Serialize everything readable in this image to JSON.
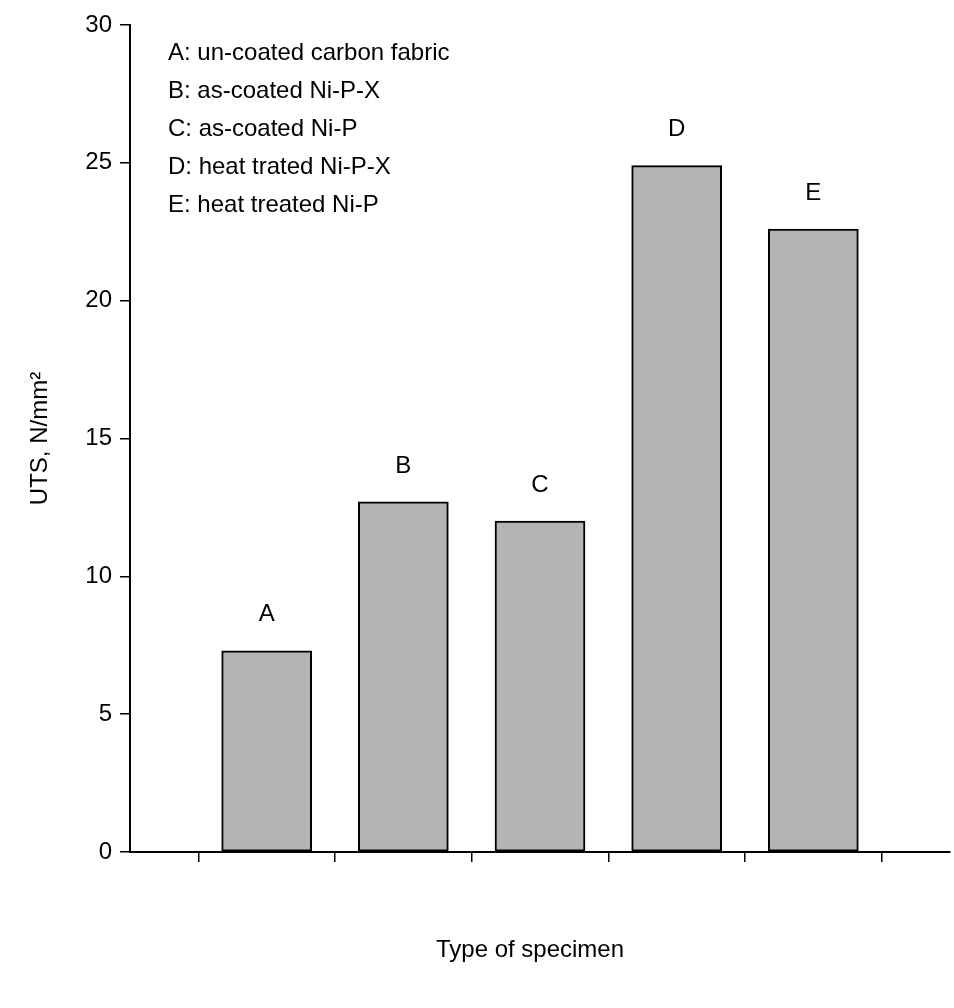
{
  "chart_data": {
    "type": "bar",
    "categories": [
      "A",
      "B",
      "C",
      "D",
      "E"
    ],
    "values": [
      7.3,
      12.7,
      12.0,
      24.9,
      22.6
    ],
    "color": "#b4b4b4",
    "ylim": [
      0,
      30
    ],
    "yticks": [
      0,
      5,
      10,
      15,
      20,
      25,
      30
    ],
    "ylabel": "UTS, N/mm²",
    "xlabel": "Type of specimen",
    "grid": false,
    "legend": false,
    "tick_labels": "y",
    "annotations": [
      "A: un-coated carbon fabric",
      "B: as-coated Ni-P-X",
      "C: as-coated Ni-P",
      "D: heat trated Ni-P-X",
      "E: heat treated Ni-P"
    ]
  }
}
